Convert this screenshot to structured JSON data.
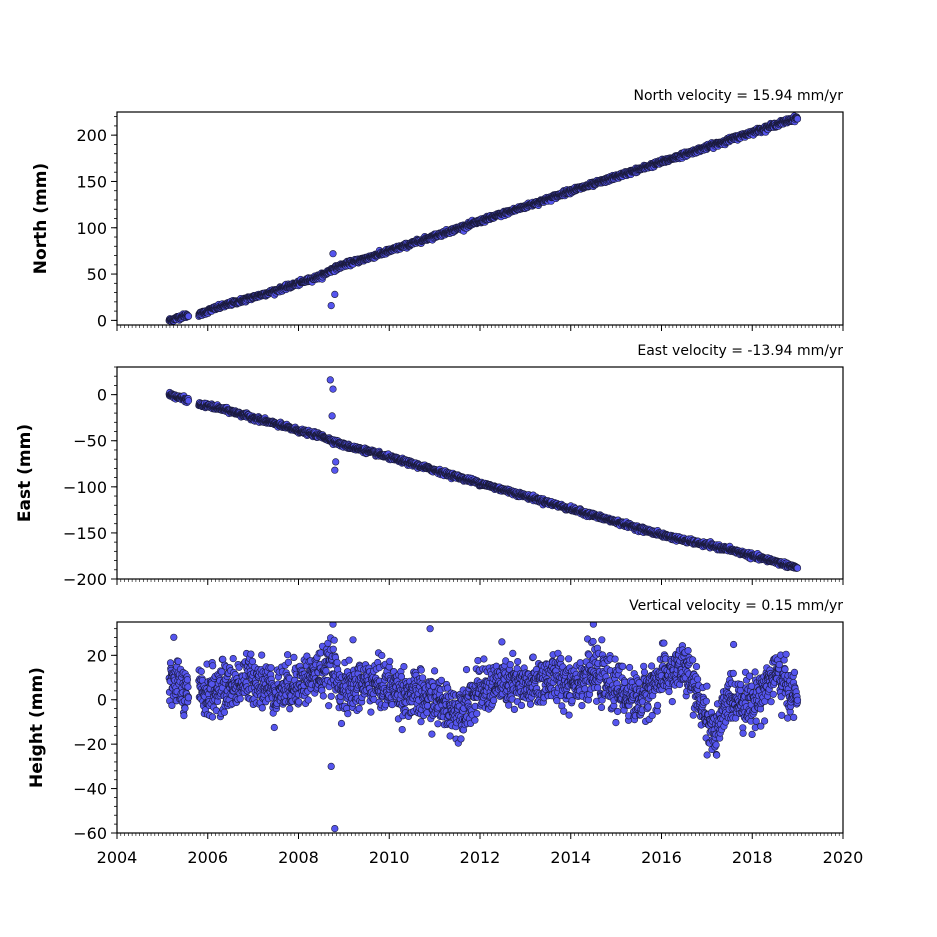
{
  "chart_data": [
    {
      "type": "scatter",
      "title": "North velocity = 15.94 mm/yr",
      "ylabel": "North (mm)",
      "xlim": [
        2004,
        2020
      ],
      "ylim": [
        -5,
        225
      ],
      "yticks": [
        0,
        50,
        100,
        150,
        200
      ],
      "ytick_labels": [
        "0",
        "50",
        "100",
        "150",
        "200"
      ],
      "xticks": [
        2004,
        2006,
        2008,
        2010,
        2012,
        2014,
        2016,
        2018,
        2020
      ],
      "xtick_labels_visible": false,
      "marker_color": "#5555ee",
      "edge_color": "#1a1a3a",
      "series": [
        {
          "x": [
            2005.15,
            2005.25,
            2005.35,
            2005.5,
            2005.85,
            2006.1,
            2006.5,
            2007.0,
            2007.5,
            2008.0,
            2008.5,
            2008.75,
            2009.0,
            2009.5,
            2010.0,
            2010.5,
            2011.0,
            2011.5,
            2012.0,
            2012.5,
            2013.0,
            2013.5,
            2014.0,
            2014.5,
            2015.0,
            2015.5,
            2016.0,
            2016.5,
            2017.0,
            2017.5,
            2018.0,
            2018.5,
            2019.0,
            2008.72,
            2008.76,
            2008.8
          ],
          "y": [
            0,
            1,
            3,
            5,
            7,
            12,
            18,
            25,
            32,
            40,
            48,
            55,
            60,
            67,
            75,
            83,
            91,
            99,
            107,
            115,
            123,
            131,
            140,
            147,
            155,
            163,
            171,
            179,
            187,
            195,
            203,
            211,
            219,
            16,
            72,
            28
          ]
        }
      ]
    },
    {
      "type": "scatter",
      "title": "East velocity = -13.94 mm/yr",
      "ylabel": "East (mm)",
      "xlim": [
        2004,
        2020
      ],
      "ylim": [
        -200,
        30
      ],
      "yticks": [
        0,
        -50,
        -100,
        -150,
        -200
      ],
      "ytick_labels": [
        "0",
        "−50",
        "−100",
        "−150",
        "−200"
      ],
      "xticks": [
        2004,
        2006,
        2008,
        2010,
        2012,
        2014,
        2016,
        2018,
        2020
      ],
      "xtick_labels_visible": false,
      "marker_color": "#5555ee",
      "edge_color": "#1a1a3a",
      "series": [
        {
          "x": [
            2005.15,
            2005.25,
            2005.35,
            2005.5,
            2005.85,
            2006.1,
            2006.5,
            2007.0,
            2007.5,
            2008.0,
            2008.5,
            2008.75,
            2009.0,
            2009.5,
            2010.0,
            2010.5,
            2011.0,
            2011.5,
            2012.0,
            2012.5,
            2013.0,
            2013.5,
            2014.0,
            2014.5,
            2015.0,
            2015.5,
            2016.0,
            2016.5,
            2017.0,
            2017.5,
            2018.0,
            2018.5,
            2019.0,
            2008.7,
            2008.76,
            2008.8,
            2008.74,
            2008.82
          ],
          "y": [
            0,
            -1,
            -3,
            -5,
            -11,
            -13,
            -18,
            -25,
            -32,
            -39,
            -45,
            -50,
            -55,
            -61,
            -68,
            -75,
            -82,
            -89,
            -96,
            -103,
            -110,
            -117,
            -124,
            -131,
            -138,
            -145,
            -152,
            -158,
            -163,
            -168,
            -175,
            -181,
            -188,
            16,
            6,
            -82,
            -23,
            -73
          ]
        }
      ]
    },
    {
      "type": "scatter",
      "title": "Vertical velocity = 0.15 mm/yr",
      "ylabel": "Height (mm)",
      "xlim": [
        2004,
        2020
      ],
      "ylim": [
        -60,
        35
      ],
      "yticks": [
        20,
        0,
        -20,
        -40,
        -60
      ],
      "ytick_labels": [
        "20",
        "0",
        "−20",
        "−40",
        "−60"
      ],
      "xticks": [
        2004,
        2006,
        2008,
        2010,
        2012,
        2014,
        2016,
        2018,
        2020
      ],
      "xtick_labels": [
        "2004",
        "2006",
        "2008",
        "2010",
        "2012",
        "2014",
        "2016",
        "2018",
        "2020"
      ],
      "xtick_labels_visible": true,
      "marker_color": "#5555ee",
      "edge_color": "#1a1a3a",
      "series": [
        {
          "x": [
            2005.15,
            2005.3,
            2005.5,
            2006.0,
            2006.5,
            2007.0,
            2007.5,
            2008.0,
            2008.5,
            2008.75,
            2009.0,
            2009.5,
            2010.0,
            2010.5,
            2011.0,
            2011.5,
            2012.0,
            2012.5,
            2013.0,
            2013.5,
            2014.0,
            2014.5,
            2015.0,
            2015.5,
            2016.0,
            2016.5,
            2017.0,
            2017.2,
            2017.5,
            2018.0,
            2018.5,
            2019.0,
            2008.72,
            2008.76,
            2008.8,
            2009.2,
            2010.9,
            2014.5
          ],
          "y": [
            5,
            10,
            2,
            3,
            6,
            10,
            4,
            8,
            12,
            15,
            3,
            8,
            6,
            2,
            0,
            -5,
            4,
            8,
            5,
            10,
            8,
            12,
            5,
            0,
            10,
            15,
            -8,
            -17,
            2,
            -2,
            12,
            0,
            -30,
            34,
            -58,
            27,
            32,
            34
          ]
        }
      ]
    }
  ]
}
